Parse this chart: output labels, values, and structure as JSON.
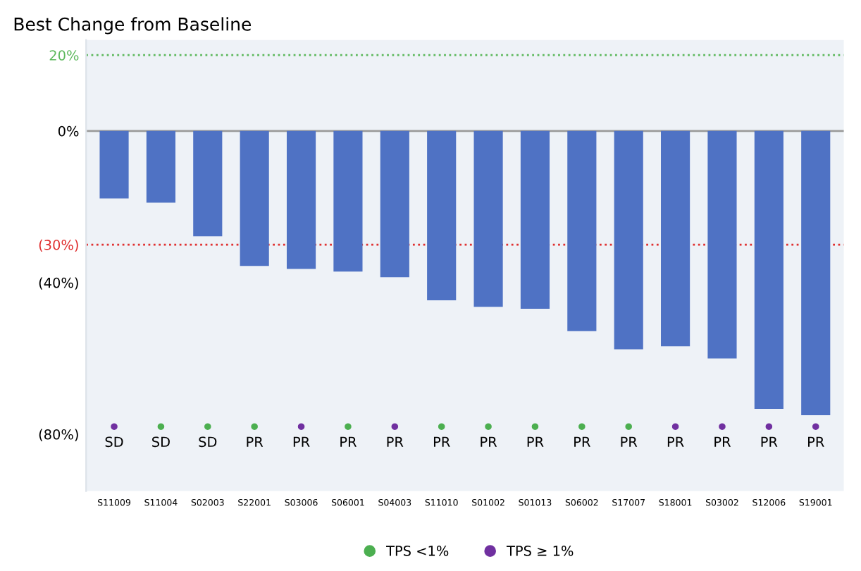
{
  "chart_data": {
    "type": "bar",
    "title": "Best Change from Baseline",
    "categories": [
      "S11009",
      "S11004",
      "S02003",
      "S22001",
      "S03006",
      "S06001",
      "S04003",
      "S11010",
      "S01002",
      "S01013",
      "S06002",
      "S17007",
      "S18001",
      "S03002",
      "S12006",
      "S19001"
    ],
    "series": [
      {
        "color": "#4f72c4",
        "values": [
          -17.8,
          -18.9,
          -27.8,
          -35.6,
          -36.4,
          -37.1,
          -38.6,
          -44.7,
          -46.4,
          -46.9,
          -52.8,
          -57.6,
          -56.8,
          -60,
          -73.3,
          -75
        ]
      },
      {
        "type": "scatter",
        "name": "TPS <1%",
        "color": "#4caf50",
        "values": [
          null,
          -78,
          -78,
          -78,
          null,
          -78,
          null,
          -78,
          -78,
          -78,
          -78,
          -78,
          null,
          null,
          null,
          null
        ],
        "value_labels": [
          null,
          "SD",
          "SD",
          "PR",
          null,
          "PR",
          null,
          "PR",
          "PR",
          "PR",
          "PR",
          "PR",
          null,
          null,
          null,
          null
        ]
      },
      {
        "type": "scatter",
        "name": "TPS ≥ 1%",
        "color": "#7030a0",
        "values": [
          -78,
          null,
          null,
          null,
          -78,
          null,
          -78,
          null,
          null,
          null,
          null,
          null,
          -78,
          -78,
          -78,
          -78
        ],
        "value_labels": [
          "SD",
          null,
          null,
          null,
          "PR",
          null,
          "PR",
          null,
          null,
          null,
          null,
          null,
          "PR",
          "PR",
          "PR",
          "PR"
        ]
      }
    ],
    "ylim": [
      -95,
      24
    ],
    "yticks": [
      {
        "value": 20,
        "label": "20%"
      },
      {
        "value": 0,
        "label": "0%"
      },
      {
        "value": -30,
        "label": "(30%)"
      },
      {
        "value": -40,
        "label": "(40%)"
      },
      {
        "value": -80,
        "label": "(80%)"
      }
    ],
    "ref_lines": [
      {
        "axis": "y",
        "value": 20,
        "color": "#5cb85c",
        "line_style": "dotted"
      },
      {
        "axis": "y",
        "value": -30,
        "color": "#e03030",
        "line_style": "dotted"
      },
      {
        "axis": "y",
        "value": 0,
        "color": "#a0a0a0",
        "line_style": "solid"
      }
    ],
    "legend": "bottom",
    "grid": false
  }
}
